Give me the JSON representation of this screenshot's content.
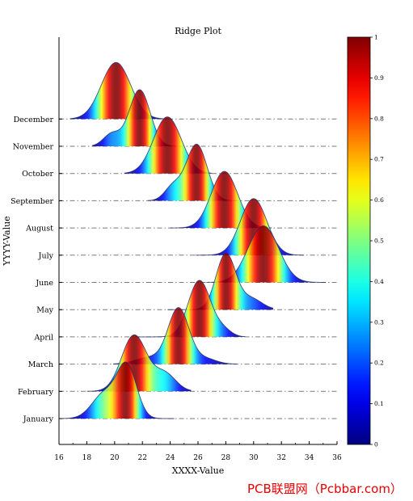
{
  "chart_data": {
    "type": "ridge",
    "title": "Ridge Plot",
    "xlabel": "XXXX-Value",
    "ylabel": "YYYY-Value",
    "xlim": [
      16,
      36
    ],
    "xticks": [
      16,
      18,
      20,
      22,
      24,
      26,
      28,
      30,
      32,
      34,
      36
    ],
    "colorbar": {
      "min": 0,
      "max": 1,
      "ticks": [
        "0",
        "0.1",
        "0.2",
        "0.3",
        "0.4",
        "0.5",
        "0.6",
        "0.7",
        "0.8",
        "0.9",
        "1"
      ],
      "colormap": "jet"
    },
    "categories": [
      "January",
      "February",
      "March",
      "April",
      "May",
      "June",
      "July",
      "August",
      "September",
      "October",
      "November",
      "December"
    ],
    "series": [
      {
        "name": "January",
        "components": [
          {
            "mean": 19.3,
            "sd": 0.9,
            "w": 0.45
          },
          {
            "mean": 20.9,
            "sd": 0.7,
            "w": 0.9
          }
        ],
        "range": [
          16.2,
          24.3
        ]
      },
      {
        "name": "February",
        "components": [
          {
            "mean": 21.4,
            "sd": 0.9,
            "w": 0.95
          },
          {
            "mean": 23.6,
            "sd": 0.8,
            "w": 0.3
          }
        ],
        "range": [
          18.0,
          25.5
        ]
      },
      {
        "name": "March",
        "components": [
          {
            "mean": 24.6,
            "sd": 0.75,
            "w": 1.0
          },
          {
            "mean": 22.5,
            "sd": 1.0,
            "w": 0.12
          },
          {
            "mean": 26.5,
            "sd": 0.8,
            "w": 0.1
          }
        ],
        "range": [
          19.9,
          28.8
        ]
      },
      {
        "name": "April",
        "components": [
          {
            "mean": 26.1,
            "sd": 0.8,
            "w": 1.0
          },
          {
            "mean": 27.8,
            "sd": 0.6,
            "w": 0.12
          }
        ],
        "range": [
          21.6,
          29.4
        ]
      },
      {
        "name": "May",
        "components": [
          {
            "mean": 28.0,
            "sd": 0.7,
            "w": 1.0
          },
          {
            "mean": 29.8,
            "sd": 0.8,
            "w": 0.2
          }
        ],
        "range": [
          23.8,
          31.4
        ]
      },
      {
        "name": "June",
        "components": [
          {
            "mean": 30.7,
            "sd": 1.1,
            "w": 1.0
          }
        ],
        "range": [
          26.6,
          35.2
        ]
      },
      {
        "name": "July",
        "components": [
          {
            "mean": 30.0,
            "sd": 0.95,
            "w": 1.0
          }
        ],
        "range": [
          25.8,
          33.6
        ]
      },
      {
        "name": "August",
        "components": [
          {
            "mean": 27.9,
            "sd": 0.95,
            "w": 1.0
          }
        ],
        "range": [
          24.0,
          31.3
        ]
      },
      {
        "name": "September",
        "components": [
          {
            "mean": 25.9,
            "sd": 0.75,
            "w": 1.0
          },
          {
            "mean": 24.2,
            "sd": 0.6,
            "w": 0.25
          }
        ],
        "range": [
          22.4,
          28.8
        ]
      },
      {
        "name": "October",
        "components": [
          {
            "mean": 23.8,
            "sd": 1.0,
            "w": 1.0
          }
        ],
        "range": [
          20.7,
          27.0
        ]
      },
      {
        "name": "November",
        "components": [
          {
            "mean": 21.8,
            "sd": 0.75,
            "w": 1.0
          },
          {
            "mean": 19.8,
            "sd": 0.6,
            "w": 0.22
          }
        ],
        "range": [
          18.4,
          24.5
        ]
      },
      {
        "name": "December",
        "components": [
          {
            "mean": 20.1,
            "sd": 1.05,
            "w": 1.0
          }
        ],
        "range": [
          16.8,
          23.8
        ]
      }
    ]
  },
  "watermark": "PCB联盟网（Pcbbar.com）"
}
